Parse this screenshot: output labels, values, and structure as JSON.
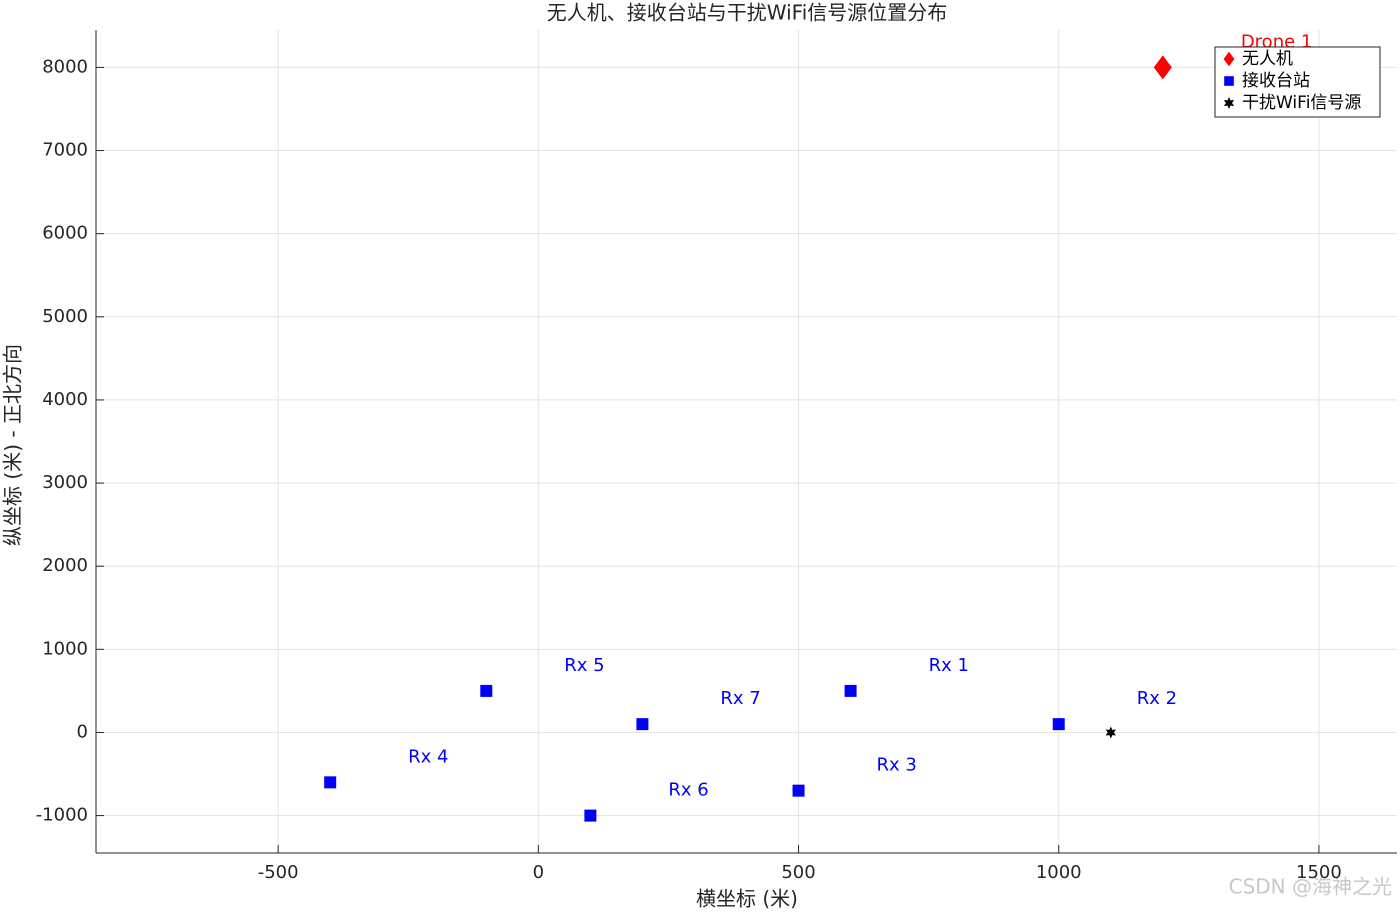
{
  "chart_data": {
    "type": "scatter",
    "title": "无人机、接收台站与干扰WiFi信号源位置分布",
    "xlabel": "横坐标 (米)",
    "ylabel": "纵坐标 (米) - 正北方向",
    "xlim": [
      -850,
      1650
    ],
    "xticks": [
      -500,
      0,
      500,
      1000,
      1500
    ],
    "ylim": [
      -1450,
      8450
    ],
    "yticks": [
      -1000,
      0,
      1000,
      2000,
      3000,
      4000,
      5000,
      6000,
      7000,
      8000
    ],
    "grid": true,
    "legend": "northeast",
    "series": [
      {
        "name": "无人机",
        "color": "#ff0000",
        "marker": "diamond",
        "x": [
          1200
        ],
        "values": [
          8000
        ],
        "point_labels": [
          "Drone 1"
        ]
      },
      {
        "name": "接收台站",
        "color": "#0000ff",
        "marker": "square",
        "x": [
          600,
          1000,
          500,
          -400,
          -100,
          100,
          200
        ],
        "values": [
          500,
          100,
          -700,
          -600,
          500,
          -1000,
          100
        ],
        "point_labels": [
          "Rx 1",
          "Rx 2",
          "Rx 3",
          "Rx 4",
          "Rx 5",
          "Rx 6",
          "Rx 7"
        ]
      },
      {
        "name": "干扰WiFi信号源",
        "color": "#000000",
        "marker": "star",
        "x": [
          1100
        ],
        "values": [
          0
        ]
      }
    ],
    "watermark": "CSDN @海神之光"
  }
}
